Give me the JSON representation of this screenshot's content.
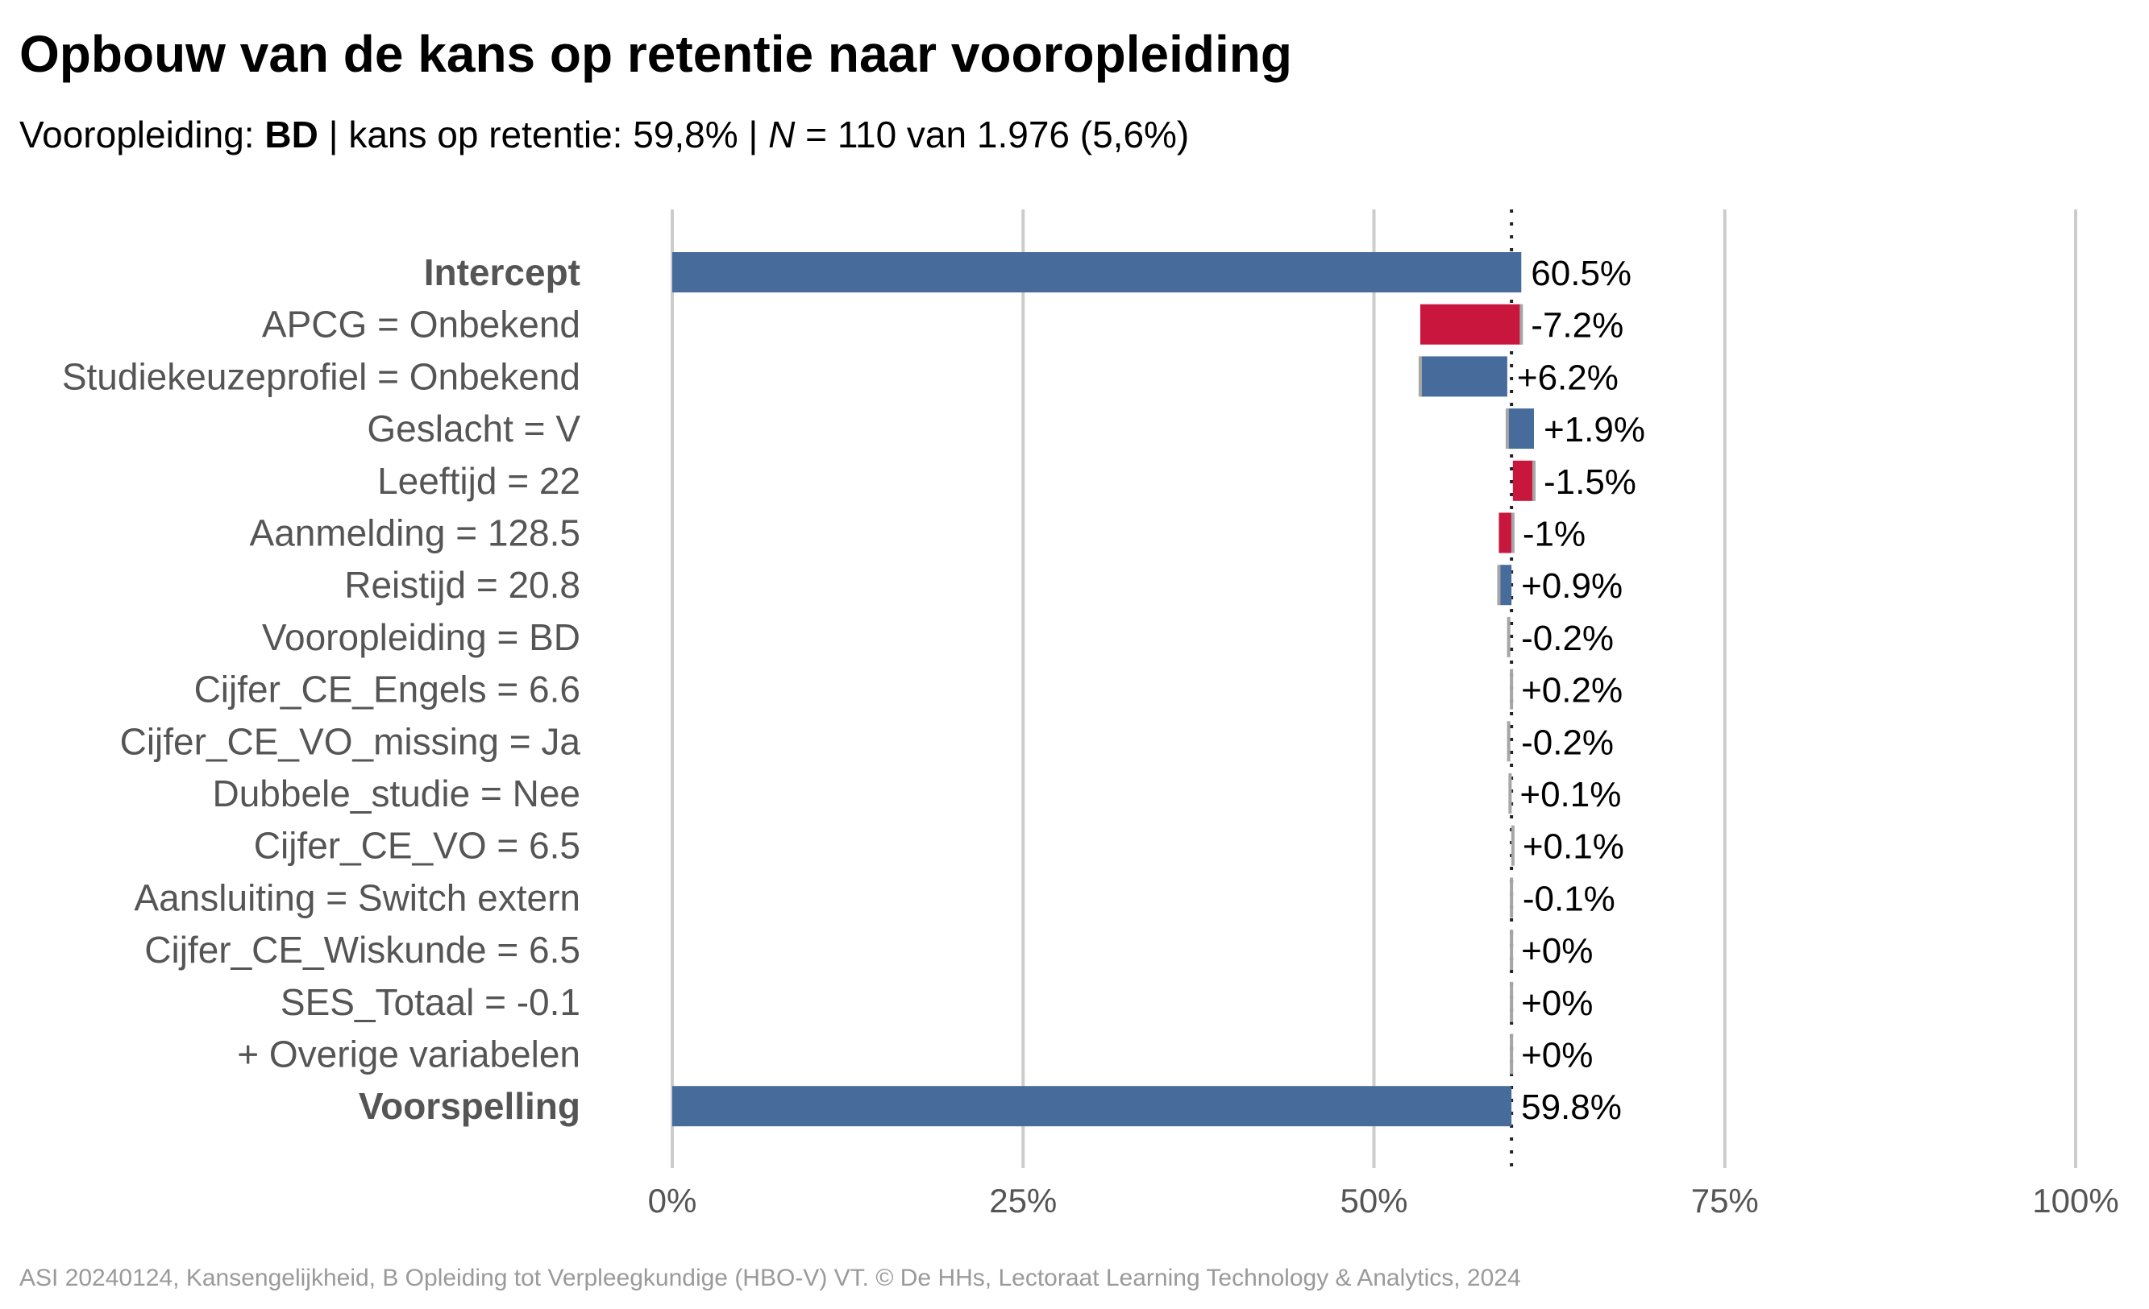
{
  "title": "Opbouw van de kans op retentie naar vooropleiding",
  "subtitle": {
    "prefix": "Vooropleiding: ",
    "group": "BD",
    "mid": " | kans op retentie: 59,8% | ",
    "n_symbol": "N",
    "n_text": " = 110 van 1.976 (5,6%)"
  },
  "caption": "ASI 20240124, Kansengelijkheid, B Opleiding tot Verpleegkundige (HBO-V) VT. © De HHs, Lectoraat Learning Technology & Analytics, 2024",
  "colors": {
    "positive": "#476c9b",
    "negative": "#c8163c",
    "neutral": "#a6a6a6",
    "grid": "#cccccc",
    "label": "#555555"
  },
  "chart_data": {
    "type": "waterfall",
    "xlim": [
      0,
      100
    ],
    "x_ticks": [
      0,
      25,
      50,
      75,
      100
    ],
    "x_tick_labels": [
      "0%",
      "25%",
      "50%",
      "75%",
      "100%"
    ],
    "reference_line": 59.8,
    "grid": true,
    "rows": [
      {
        "label": "Intercept",
        "kind": "total",
        "start": 0,
        "end": 60.5,
        "value_label": "60.5%",
        "bold": true
      },
      {
        "label": "APCG = Onbekend",
        "kind": "negative",
        "start": 60.5,
        "end": 53.3,
        "value_label": "-7.2%"
      },
      {
        "label": "Studiekeuzeprofiel = Onbekend",
        "kind": "positive",
        "start": 53.3,
        "end": 59.5,
        "value_label": "+6.2%"
      },
      {
        "label": "Geslacht = V",
        "kind": "positive",
        "start": 59.5,
        "end": 61.4,
        "value_label": "+1.9%"
      },
      {
        "label": "Leeftijd = 22",
        "kind": "negative",
        "start": 61.4,
        "end": 59.9,
        "value_label": "-1.5%"
      },
      {
        "label": "Aanmelding = 128.5",
        "kind": "negative",
        "start": 59.9,
        "end": 58.9,
        "value_label": "-1%"
      },
      {
        "label": "Reistijd = 20.8",
        "kind": "positive",
        "start": 58.9,
        "end": 59.8,
        "value_label": "+0.9%"
      },
      {
        "label": "Vooropleiding = BD",
        "kind": "neutral",
        "start": 59.8,
        "end": 59.6,
        "value_label": "-0.2%"
      },
      {
        "label": "Cijfer_CE_Engels = 6.6",
        "kind": "neutral",
        "start": 59.6,
        "end": 59.8,
        "value_label": "+0.2%"
      },
      {
        "label": "Cijfer_CE_VO_missing = Ja",
        "kind": "neutral",
        "start": 59.8,
        "end": 59.6,
        "value_label": "-0.2%"
      },
      {
        "label": "Dubbele_studie = Nee",
        "kind": "neutral",
        "start": 59.6,
        "end": 59.7,
        "value_label": "+0.1%"
      },
      {
        "label": "Cijfer_CE_VO = 6.5",
        "kind": "neutral",
        "start": 59.7,
        "end": 59.9,
        "value_label": "+0.1%"
      },
      {
        "label": "Aansluiting = Switch extern",
        "kind": "neutral",
        "start": 59.9,
        "end": 59.8,
        "value_label": "-0.1%"
      },
      {
        "label": "Cijfer_CE_Wiskunde = 6.5",
        "kind": "neutral",
        "start": 59.8,
        "end": 59.8,
        "value_label": "+0%"
      },
      {
        "label": "SES_Totaal = -0.1",
        "kind": "neutral",
        "start": 59.8,
        "end": 59.8,
        "value_label": "+0%"
      },
      {
        "label": "+ Overige variabelen",
        "kind": "neutral",
        "start": 59.8,
        "end": 59.8,
        "value_label": "+0%"
      },
      {
        "label": "Voorspelling",
        "kind": "total",
        "start": 0,
        "end": 59.8,
        "value_label": "59.8%",
        "bold": true
      }
    ]
  }
}
